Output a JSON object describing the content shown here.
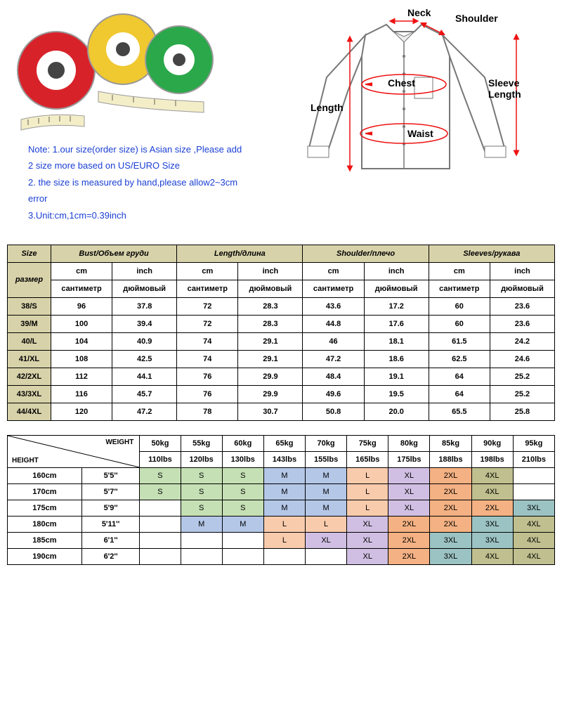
{
  "notes": {
    "line1": "Note: 1.our size(order size) is Asian size ,Please add",
    "line2": "2 size more based on US/EURO Size",
    "line3": "2. the size is measured by hand,please allow2~3cm error",
    "line4": "3.Unit:cm,1cm=0.39inch"
  },
  "shirt_labels": {
    "neck": "Neck",
    "shoulder": "Shoulder",
    "sleeve": "Sleeve Length",
    "chest": "Chest",
    "length": "Length",
    "waist": "Waist"
  },
  "size_table": {
    "headers": {
      "size": "Size",
      "razmer": "размер",
      "groups": [
        "Bust/Объем груди",
        "Length/длина",
        "Shoulder/плечо",
        "Sleeves/рукава"
      ],
      "cm": "cm",
      "inch": "inch",
      "cm_ru": "сантиметр",
      "inch_ru": "дюймовый"
    },
    "rows": [
      {
        "size": "38/S",
        "vals": [
          "96",
          "37.8",
          "72",
          "28.3",
          "43.6",
          "17.2",
          "60",
          "23.6"
        ]
      },
      {
        "size": "39/M",
        "vals": [
          "100",
          "39.4",
          "72",
          "28.3",
          "44.8",
          "17.6",
          "60",
          "23.6"
        ]
      },
      {
        "size": "40/L",
        "vals": [
          "104",
          "40.9",
          "74",
          "29.1",
          "46",
          "18.1",
          "61.5",
          "24.2"
        ]
      },
      {
        "size": "41/XL",
        "vals": [
          "108",
          "42.5",
          "74",
          "29.1",
          "47.2",
          "18.6",
          "62.5",
          "24.6"
        ]
      },
      {
        "size": "42/2XL",
        "vals": [
          "112",
          "44.1",
          "76",
          "29.9",
          "48.4",
          "19.1",
          "64",
          "25.2"
        ]
      },
      {
        "size": "43/3XL",
        "vals": [
          "116",
          "45.7",
          "76",
          "29.9",
          "49.6",
          "19.5",
          "64",
          "25.2"
        ]
      },
      {
        "size": "44/4XL",
        "vals": [
          "120",
          "47.2",
          "78",
          "30.7",
          "50.8",
          "20.0",
          "65.5",
          "25.8"
        ]
      }
    ]
  },
  "weight_table": {
    "corner": {
      "weight": "WEIGHT",
      "height": "HEIGHT"
    },
    "weights_kg": [
      "50kg",
      "55kg",
      "60kg",
      "65kg",
      "70kg",
      "75kg",
      "80kg",
      "85kg",
      "90kg",
      "95kg"
    ],
    "weights_lbs": [
      "110lbs",
      "120lbs",
      "130lbs",
      "143lbs",
      "155lbs",
      "165lbs",
      "175lbs",
      "188lbs",
      "198lbs",
      "210lbs"
    ],
    "heights": [
      {
        "cm": "160cm",
        "ft": "5'5''"
      },
      {
        "cm": "170cm",
        "ft": "5'7''"
      },
      {
        "cm": "175cm",
        "ft": "5'9''"
      },
      {
        "cm": "180cm",
        "ft": "5'11''"
      },
      {
        "cm": "185cm",
        "ft": "6'1''"
      },
      {
        "cm": "190cm",
        "ft": "6'2''"
      }
    ],
    "grid": [
      [
        {
          "t": "S",
          "c": "green"
        },
        {
          "t": "S",
          "c": "green"
        },
        {
          "t": "S",
          "c": "green"
        },
        {
          "t": "M",
          "c": "blue"
        },
        {
          "t": "M",
          "c": "blue"
        },
        {
          "t": "L",
          "c": "pink"
        },
        {
          "t": "XL",
          "c": "purple"
        },
        {
          "t": "2XL",
          "c": "orange"
        },
        {
          "t": "4XL",
          "c": "olive"
        },
        {
          "t": "",
          "c": ""
        }
      ],
      [
        {
          "t": "S",
          "c": "green"
        },
        {
          "t": "S",
          "c": "green"
        },
        {
          "t": "S",
          "c": "green"
        },
        {
          "t": "M",
          "c": "blue"
        },
        {
          "t": "M",
          "c": "blue"
        },
        {
          "t": "L",
          "c": "pink"
        },
        {
          "t": "XL",
          "c": "purple"
        },
        {
          "t": "2XL",
          "c": "orange"
        },
        {
          "t": "4XL",
          "c": "olive"
        },
        {
          "t": "",
          "c": ""
        }
      ],
      [
        {
          "t": "",
          "c": ""
        },
        {
          "t": "S",
          "c": "green"
        },
        {
          "t": "S",
          "c": "green"
        },
        {
          "t": "M",
          "c": "blue"
        },
        {
          "t": "M",
          "c": "blue"
        },
        {
          "t": "L",
          "c": "pink"
        },
        {
          "t": "XL",
          "c": "purple"
        },
        {
          "t": "2XL",
          "c": "orange"
        },
        {
          "t": "2XL",
          "c": "orange"
        },
        {
          "t": "3XL",
          "c": "teal"
        }
      ],
      [
        {
          "t": "",
          "c": ""
        },
        {
          "t": "M",
          "c": "blue"
        },
        {
          "t": "M",
          "c": "blue"
        },
        {
          "t": "L",
          "c": "pink"
        },
        {
          "t": "L",
          "c": "pink"
        },
        {
          "t": "XL",
          "c": "purple"
        },
        {
          "t": "2XL",
          "c": "orange"
        },
        {
          "t": "2XL",
          "c": "orange"
        },
        {
          "t": "3XL",
          "c": "teal"
        },
        {
          "t": "4XL",
          "c": "olive"
        }
      ],
      [
        {
          "t": "",
          "c": ""
        },
        {
          "t": "",
          "c": ""
        },
        {
          "t": "",
          "c": ""
        },
        {
          "t": "L",
          "c": "pink"
        },
        {
          "t": "XL",
          "c": "purple"
        },
        {
          "t": "XL",
          "c": "purple"
        },
        {
          "t": "2XL",
          "c": "orange"
        },
        {
          "t": "3XL",
          "c": "teal"
        },
        {
          "t": "3XL",
          "c": "teal"
        },
        {
          "t": "4XL",
          "c": "olive"
        }
      ],
      [
        {
          "t": "",
          "c": ""
        },
        {
          "t": "",
          "c": ""
        },
        {
          "t": "",
          "c": ""
        },
        {
          "t": "",
          "c": ""
        },
        {
          "t": "",
          "c": ""
        },
        {
          "t": "XL",
          "c": "purple"
        },
        {
          "t": "2XL",
          "c": "orange"
        },
        {
          "t": "3XL",
          "c": "teal"
        },
        {
          "t": "4XL",
          "c": "olive"
        },
        {
          "t": "4XL",
          "c": "olive"
        }
      ]
    ]
  },
  "colors": {
    "green": "#c5e0b4",
    "blue": "#b4c7e7",
    "pink": "#f8cbad",
    "purple": "#d0bfe3",
    "orange": "#f4b183",
    "teal": "#9cc3c3",
    "olive": "#bfbf8f"
  }
}
